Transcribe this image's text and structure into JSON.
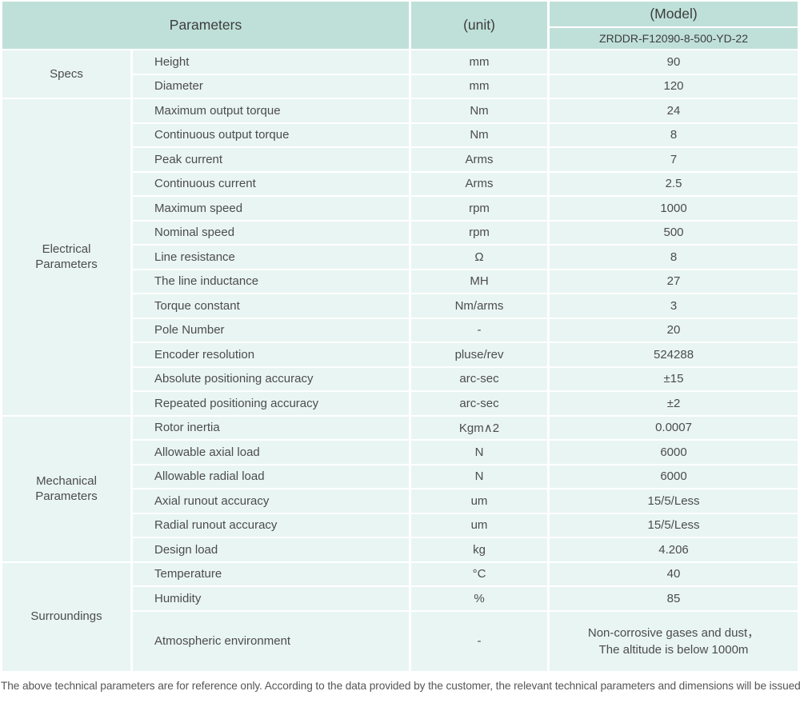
{
  "header": {
    "parameters_label": "Parameters",
    "unit_label": "(unit)",
    "model_label": "(Model)",
    "model_value": "ZRDDR-F12090-8-500-YD-22"
  },
  "sections": [
    {
      "name": "Specs",
      "rows": [
        {
          "param": "Height",
          "unit": "mm",
          "value": "90"
        },
        {
          "param": "Diameter",
          "unit": "mm",
          "value": "120"
        }
      ]
    },
    {
      "name": "Electrical\nParameters",
      "rows": [
        {
          "param": "Maximum output torque",
          "unit": "Nm",
          "value": "24"
        },
        {
          "param": "Continuous output torque",
          "unit": "Nm",
          "value": "8"
        },
        {
          "param": "Peak current",
          "unit": "Arms",
          "value": "7"
        },
        {
          "param": "Continuous current",
          "unit": "Arms",
          "value": "2.5"
        },
        {
          "param": "Maximum speed",
          "unit": "rpm",
          "value": "1000"
        },
        {
          "param": "Nominal speed",
          "unit": "rpm",
          "value": "500"
        },
        {
          "param": "Line resistance",
          "unit": "Ω",
          "value": "8"
        },
        {
          "param": "The line inductance",
          "unit": "MH",
          "value": "27"
        },
        {
          "param": "Torque constant",
          "unit": "Nm/arms",
          "value": "3"
        },
        {
          "param": "Pole Number",
          "unit": "-",
          "value": "20"
        },
        {
          "param": "Encoder resolution",
          "unit": "pluse/rev",
          "value": "524288"
        },
        {
          "param": "Absolute positioning accuracy",
          "unit": "arc-sec",
          "value": "±15"
        },
        {
          "param": "Repeated positioning accuracy",
          "unit": "arc-sec",
          "value": "±2"
        }
      ]
    },
    {
      "name": "Mechanical\nParameters",
      "rows": [
        {
          "param": "Rotor inertia",
          "unit": "Kgm∧2",
          "value": "0.0007"
        },
        {
          "param": "Allowable axial load",
          "unit": "N",
          "value": "6000"
        },
        {
          "param": "Allowable radial load",
          "unit": "N",
          "value": "6000"
        },
        {
          "param": "Axial runout accuracy",
          "unit": "um",
          "value": "15/5/Less"
        },
        {
          "param": "Radial runout accuracy",
          "unit": "um",
          "value": "15/5/Less"
        },
        {
          "param": "Design load",
          "unit": "kg",
          "value": "4.206"
        }
      ]
    },
    {
      "name": "Surroundings",
      "rows": [
        {
          "param": "Temperature",
          "unit": "°C",
          "value": "40"
        },
        {
          "param": "Humidity",
          "unit": "%",
          "value": "85"
        },
        {
          "param": "Atmospheric environment",
          "unit": "-",
          "value": "Non-corrosive gases and dust，\nThe altitude is below 1000m"
        }
      ]
    }
  ],
  "footer": "The above technical parameters are for reference only. According to the data provided by the customer, the relevant technical parameters and dimensions will be issued.",
  "colors": {
    "header_bg": "#bfe0d9",
    "row_bg": "#e9f5f2",
    "grid_line": "#ffffff",
    "text": "#4c4c4c",
    "footer_text": "#565656"
  }
}
